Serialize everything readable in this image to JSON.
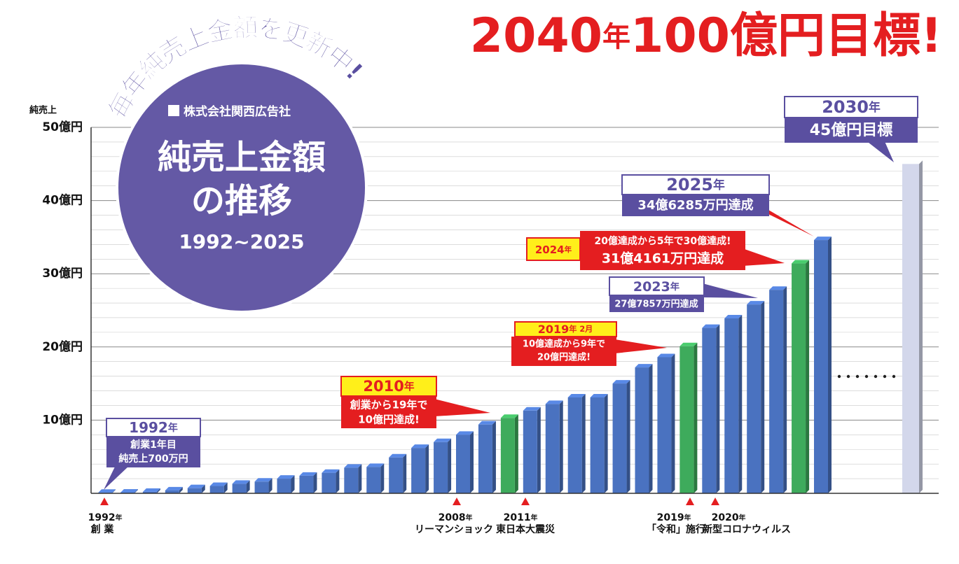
{
  "chart_data": {
    "type": "bar3d",
    "title": {
      "year": "2040",
      "unit": "年",
      "goal": "100億円目標!"
    },
    "ribbon": "毎年純売上金額を更新中!",
    "badge": {
      "company": "株式会社関西広告社",
      "line1": "純売上金額",
      "line2": "の推移",
      "period": "1992~2025"
    },
    "y_label": "純売上",
    "categories": [
      null,
      null,
      null,
      null,
      null,
      null,
      null,
      null,
      null,
      null,
      null,
      null,
      null,
      null,
      null,
      null,
      null,
      null,
      null,
      null,
      null,
      null,
      null,
      null,
      null,
      null,
      null,
      null,
      null,
      null,
      null,
      null,
      null
    ],
    "values": [
      0.07,
      0.1,
      0.2,
      0.4,
      0.7,
      1.0,
      1.3,
      1.6,
      2.0,
      2.4,
      2.8,
      3.5,
      3.6,
      4.9,
      6.2,
      7.0,
      8.0,
      9.4,
      10.3,
      11.3,
      12.2,
      13.1,
      13.1,
      15.0,
      17.2,
      18.6,
      20.1,
      22.6,
      23.9,
      25.8,
      27.8,
      31.4,
      34.6
    ],
    "colors": [
      "#4a72c0",
      "#4a72c0",
      "#4a72c0",
      "#4a72c0",
      "#4a72c0",
      "#4a72c0",
      "#4a72c0",
      "#4a72c0",
      "#4a72c0",
      "#4a72c0",
      "#4a72c0",
      "#4a72c0",
      "#4a72c0",
      "#4a72c0",
      "#4a72c0",
      "#4a72c0",
      "#4a72c0",
      "#4a72c0",
      "#3eab5c",
      "#4a72c0",
      "#4a72c0",
      "#4a72c0",
      "#4a72c0",
      "#4a72c0",
      "#4a72c0",
      "#4a72c0",
      "#3eab5c",
      "#4a72c0",
      "#4a72c0",
      "#4a72c0",
      "#4a72c0",
      "#3eab5c",
      "#4a72c0"
    ],
    "target": {
      "value": 45,
      "color": "#d3d7eb"
    },
    "ylim": [
      0,
      50
    ],
    "yticks": [
      {
        "value": 10,
        "label": "10億円"
      },
      {
        "value": 20,
        "label": "20億円"
      },
      {
        "value": 30,
        "label": "30億円"
      },
      {
        "value": 40,
        "label": "40億円"
      },
      {
        "value": 50,
        "label": "50億円"
      }
    ],
    "minor_yticks": [
      2,
      4,
      6,
      8,
      12,
      14,
      16,
      18,
      22,
      24,
      26,
      28,
      32,
      34,
      36,
      38,
      42,
      44,
      46,
      48
    ],
    "grid": true,
    "callouts": {
      "c1992": {
        "head": "1992",
        "unit": "年",
        "l1": "創業1年目",
        "l2": "純売上700万円"
      },
      "c2010": {
        "head": "2010",
        "unit": "年",
        "l1": "創業から19年で",
        "l2": "10億円達成!"
      },
      "c2019": {
        "head": "2019",
        "unit": "年 2月",
        "l1": "10億達成から9年で",
        "l2": "20億円達成!"
      },
      "c2023": {
        "head": "2023",
        "unit": "年",
        "l1": "27億7857万円達成"
      },
      "c2024": {
        "head": "2024",
        "unit": "年",
        "l1": "20億達成から5年で30億達成!",
        "l2": "31億4161万円達成"
      },
      "c2025": {
        "head": "2025",
        "unit": "年",
        "l1": "34億6285万円達成"
      },
      "c2030": {
        "head": "2030",
        "unit": "年",
        "l1": "45億円目標"
      }
    },
    "events": [
      {
        "year": "1992",
        "unit": "年",
        "label": "創 業"
      },
      {
        "year": "2008",
        "unit": "年",
        "label": "リーマンショック"
      },
      {
        "year": "2011",
        "unit": "年",
        "label": "東日本大震災"
      },
      {
        "year": "2019",
        "unit": "年",
        "label": "「令和」施行"
      },
      {
        "year": "2020",
        "unit": "年",
        "label": "新型コロナウィルス"
      }
    ]
  }
}
